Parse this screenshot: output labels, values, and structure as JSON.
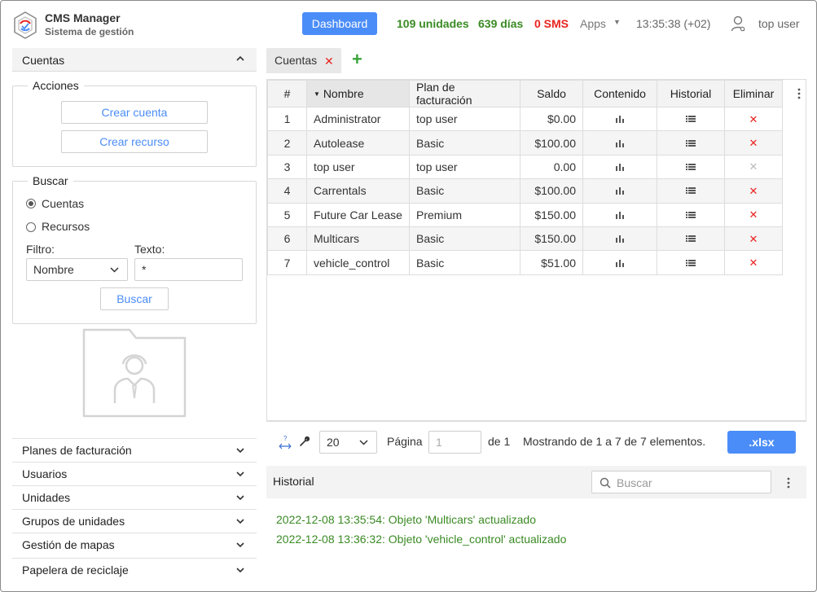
{
  "header": {
    "title": "CMS Manager",
    "subtitle": "Sistema de gestión",
    "dashboard_label": "Dashboard",
    "units_stat": "109 unidades",
    "days_stat": "639 días",
    "sms_stat": "0 SMS",
    "apps_label": "Apps",
    "clock": "13:35:38 (+02)",
    "user_name": "top user",
    "colors": {
      "accent": "#4b8df8",
      "ok": "#3a8a24",
      "alert": "#e8231e"
    }
  },
  "sidebar": {
    "accounts_header": "Cuentas",
    "actions": {
      "legend": "Acciones",
      "create_account": "Crear cuenta",
      "create_resource": "Crear recurso"
    },
    "search": {
      "legend": "Buscar",
      "radio_accounts": "Cuentas",
      "radio_resources": "Recursos",
      "selected": "Cuentas",
      "filter_label": "Filtro:",
      "filter_value": "Nombre",
      "text_label": "Texto:",
      "text_value": "*",
      "search_button": "Buscar"
    },
    "nav_items": [
      "Planes de facturación",
      "Usuarios",
      "Unidades",
      "Grupos de unidades",
      "Gestión de mapas",
      "Papelera de reciclaje"
    ]
  },
  "tabs": {
    "active": "Cuentas"
  },
  "table": {
    "columns": [
      "#",
      "Nombre",
      "Plan de facturación",
      "Saldo",
      "Contenido",
      "Historial",
      "Eliminar"
    ],
    "sorted_column": "Nombre",
    "rows": [
      {
        "n": "1",
        "name": "Administrator",
        "plan": "top user",
        "balance": "$0.00",
        "delete_enabled": true
      },
      {
        "n": "2",
        "name": "Autolease",
        "plan": "Basic",
        "balance": "$100.00",
        "delete_enabled": true
      },
      {
        "n": "3",
        "name": "top user",
        "plan": "top user",
        "balance": "0.00",
        "delete_enabled": false
      },
      {
        "n": "4",
        "name": "Carrentals",
        "plan": "Basic",
        "balance": "$100.00",
        "delete_enabled": true
      },
      {
        "n": "5",
        "name": "Future Car Lease",
        "plan": "Premium",
        "balance": "$150.00",
        "delete_enabled": true
      },
      {
        "n": "6",
        "name": "Multicars",
        "plan": "Basic",
        "balance": "$150.00",
        "delete_enabled": true
      },
      {
        "n": "7",
        "name": "vehicle_control",
        "plan": "Basic",
        "balance": "$51.00",
        "delete_enabled": true
      }
    ]
  },
  "pager": {
    "page_size": "20",
    "page_label": "Página",
    "page_value": "1",
    "of_label": "de 1",
    "showing": "Mostrando de 1 a 7 de 7 elementos.",
    "export_label": ".xlsx"
  },
  "history": {
    "title": "Historial",
    "search_placeholder": "Buscar",
    "entries": [
      "2022-12-08 13:35:54: Objeto 'Multicars' actualizado",
      "2022-12-08 13:36:32: Objeto 'vehicle_control' actualizado"
    ]
  }
}
